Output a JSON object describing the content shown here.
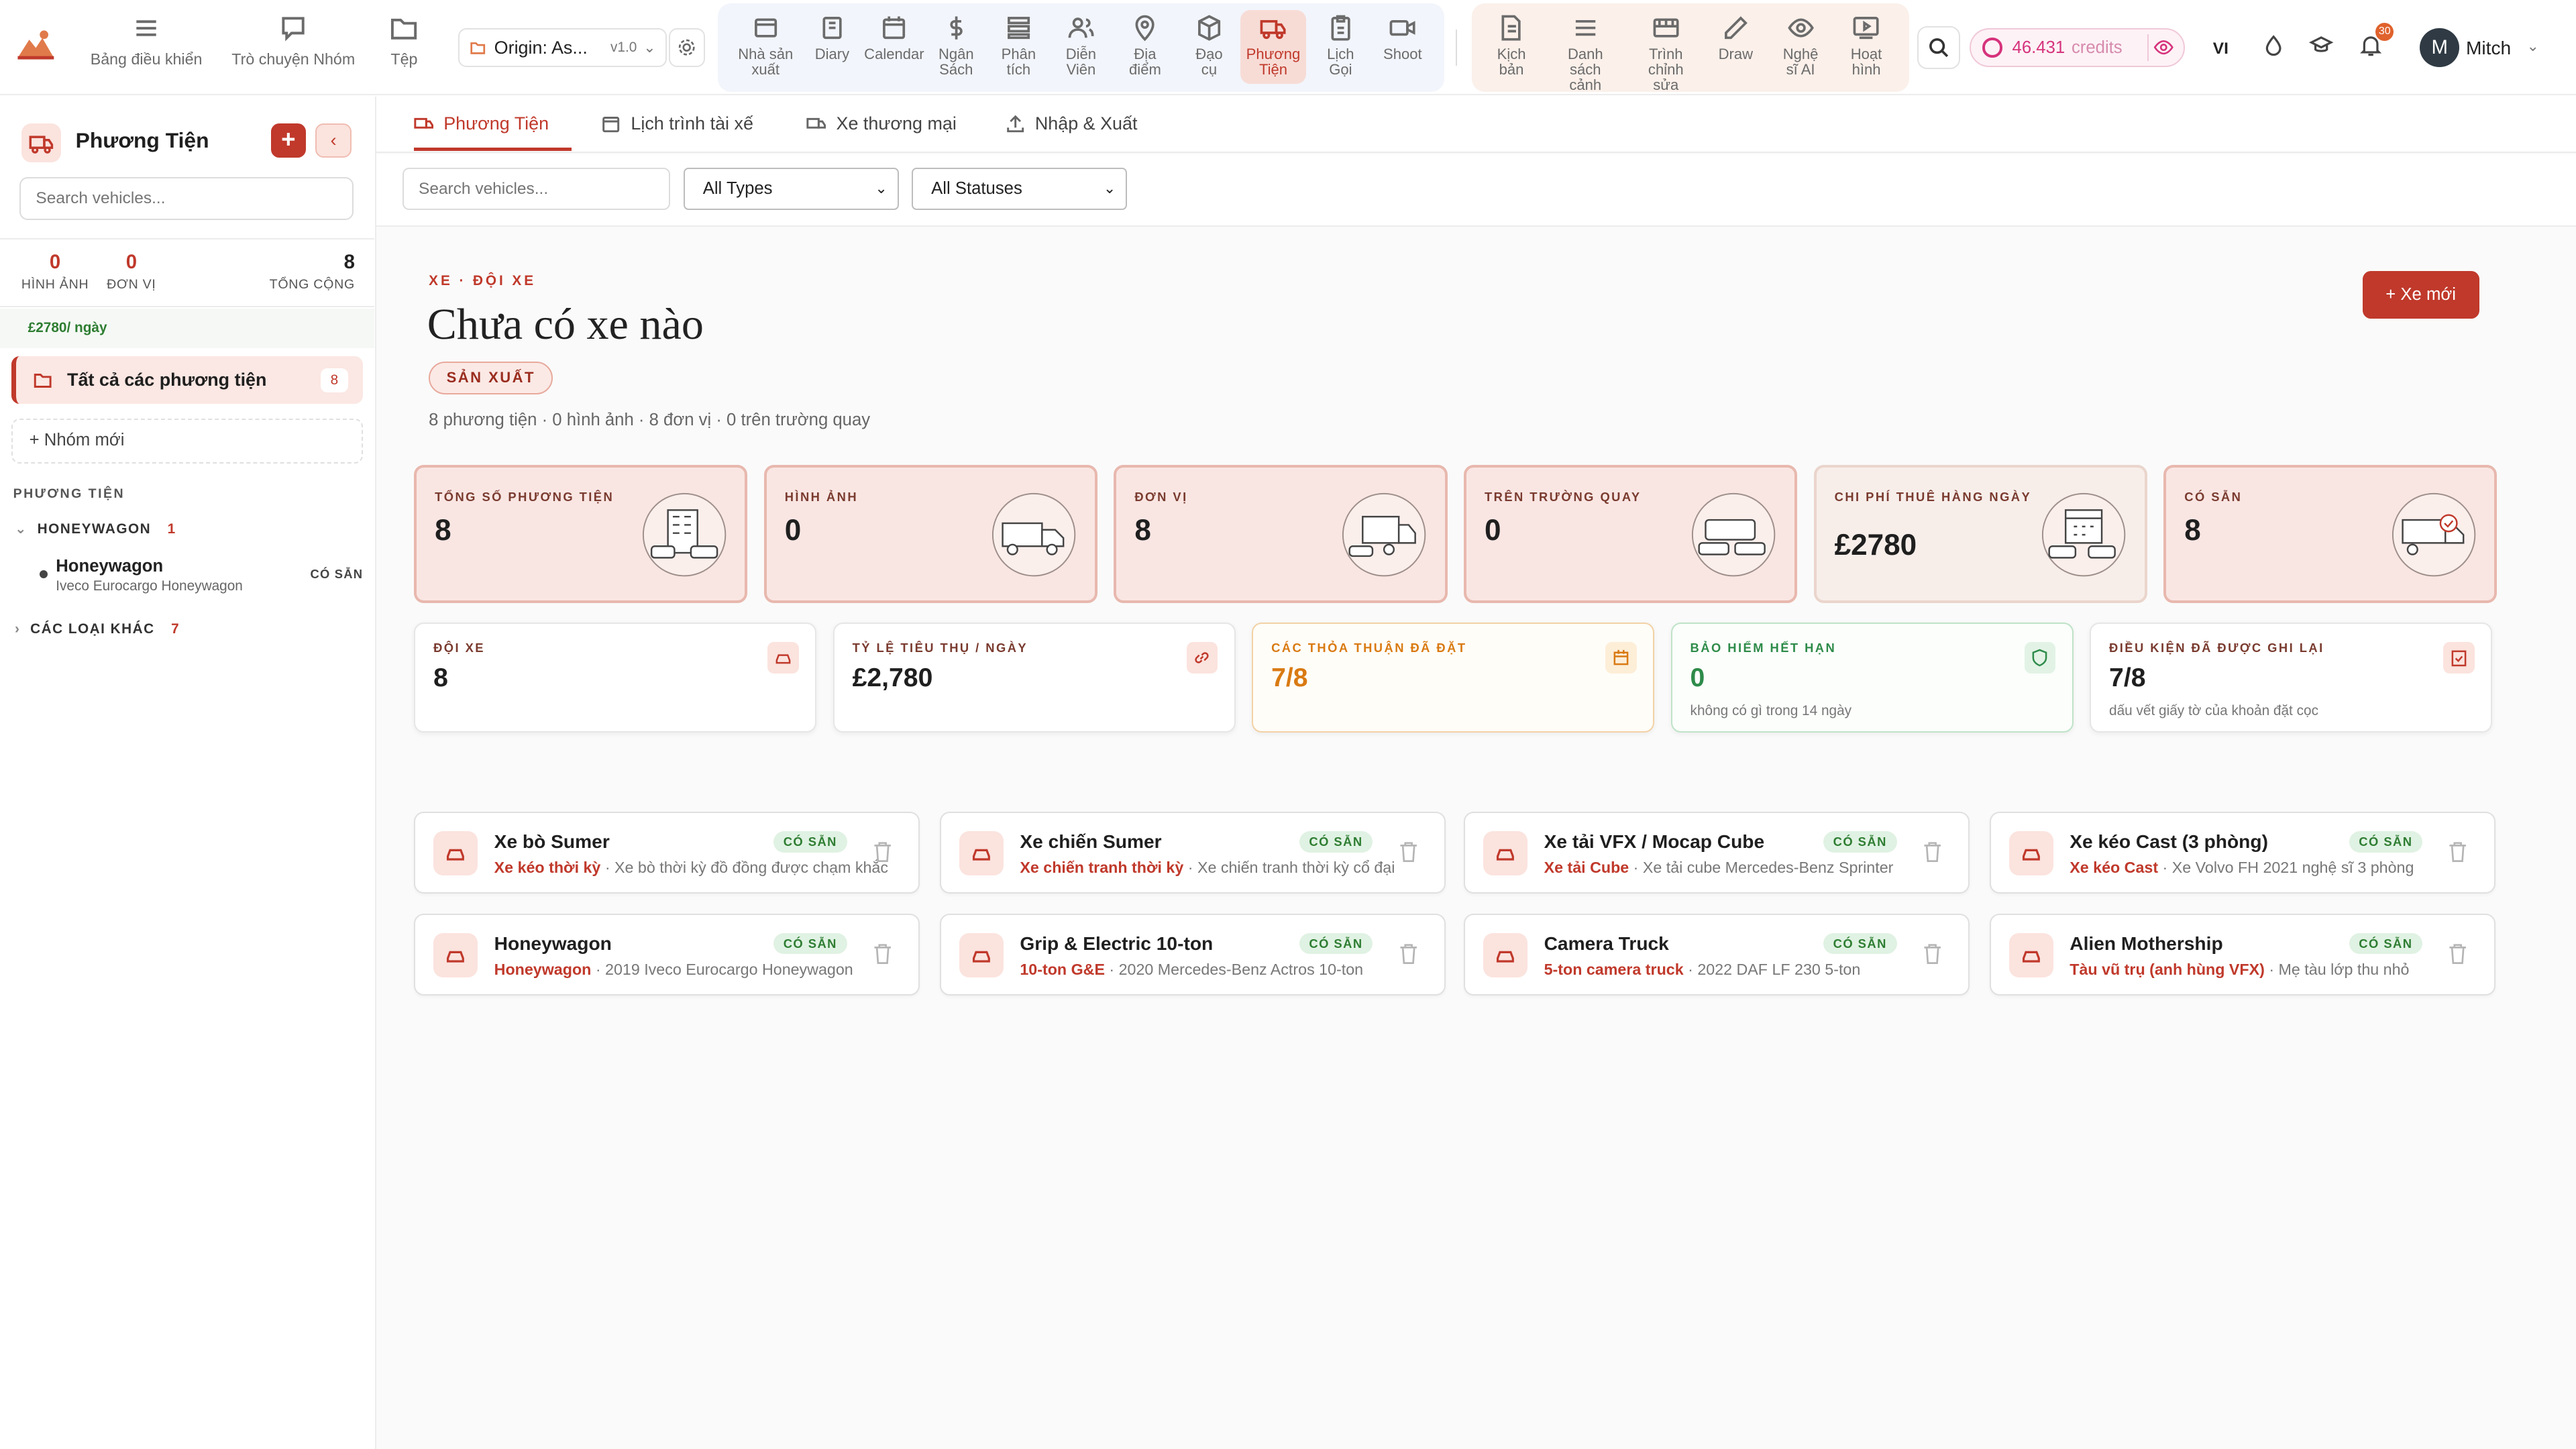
{
  "header": {
    "nav": [
      {
        "label": "Bảng điều khiển",
        "icon": "dashboard-icon"
      },
      {
        "label": "Trò chuyện Nhóm",
        "icon": "chat-icon"
      },
      {
        "label": "Tệp",
        "icon": "folder-icon"
      }
    ],
    "project": {
      "name": "Origin: As...",
      "version": "v1.0"
    },
    "modules": [
      {
        "label": "Nhà sản xuất",
        "icon": "producer-icon"
      },
      {
        "label": "Diary",
        "icon": "diary-icon"
      },
      {
        "label": "Calendar",
        "icon": "calendar-icon"
      },
      {
        "label": "Ngân Sách",
        "icon": "dollar-icon"
      },
      {
        "label": "Phân tích",
        "icon": "breakdown-icon"
      },
      {
        "label": "Diễn Viên",
        "icon": "cast-icon"
      },
      {
        "label": "Địa điểm",
        "icon": "location-icon"
      },
      {
        "label": "Đạo cụ",
        "icon": "props-icon"
      },
      {
        "label": "Phương Tiện",
        "icon": "truck-icon",
        "active": true
      },
      {
        "label": "Lịch Gọi",
        "icon": "callsheet-icon"
      },
      {
        "label": "Shoot",
        "icon": "camera-icon"
      }
    ],
    "tools": [
      {
        "label": "Kịch bản",
        "icon": "script-icon"
      },
      {
        "label": "Danh sách cảnh",
        "icon": "list-icon"
      },
      {
        "label": "Trình chỉnh sửa",
        "icon": "editor-icon"
      },
      {
        "label": "Draw",
        "icon": "pencil-icon"
      },
      {
        "label": "Nghệ sĩ AI",
        "icon": "eye-icon"
      },
      {
        "label": "Hoạt hình",
        "icon": "animation-icon"
      }
    ],
    "credits": {
      "value": "46.431",
      "unit": "credits"
    },
    "language": "VI",
    "notifications": "30",
    "user": {
      "initial": "M",
      "name": "Mitch"
    }
  },
  "sidebar": {
    "title": "Phương Tiện",
    "add_label": "+",
    "collapse_label": "‹",
    "search_placeholder": "Search vehicles...",
    "stats": [
      {
        "value": "0",
        "label": "HÌNH ẢNH"
      },
      {
        "value": "0",
        "label": "ĐƠN VỊ"
      },
      {
        "value": "8",
        "label": "TỔNG CỘNG"
      }
    ],
    "rate": "£2780/ ngày",
    "all_label": "Tất cả các phương tiện",
    "all_count": "8",
    "new_group": "+  Nhóm mới",
    "section": "PHƯƠNG TIỆN",
    "groups": [
      {
        "name": "HONEYWAGON",
        "count": "1",
        "caret": "⌄"
      },
      {
        "name": "CÁC LOẠI KHÁC",
        "count": "7",
        "caret": "›"
      }
    ],
    "vehicle": {
      "name": "Honeywagon",
      "model": "Iveco Eurocargo Honeywagon",
      "status": "CÓ SẴN"
    }
  },
  "main": {
    "tabs": [
      {
        "label": "Phương Tiện",
        "active": true
      },
      {
        "label": "Lịch trình tài xế"
      },
      {
        "label": "Xe thương mại"
      },
      {
        "label": "Nhập & Xuất"
      }
    ],
    "filters": {
      "search_placeholder": "Search vehicles...",
      "type": "All Types",
      "status": "All Statuses"
    },
    "eyebrow": "XE · ĐỘI XE",
    "title": "Chưa có xe nào",
    "phase": "SẢN XUẤT",
    "summary": "8 phương tiện · 0 hình ảnh · 8 đơn vị · 0 trên trường quay",
    "new_button": "+ Xe mới",
    "stat_cards": [
      {
        "label": "TỔNG SỐ PHƯƠNG TIỆN",
        "value": "8"
      },
      {
        "label": "HÌNH ẢNH",
        "value": "0"
      },
      {
        "label": "ĐƠN VỊ",
        "value": "8"
      },
      {
        "label": "TRÊN TRƯỜNG QUAY",
        "value": "0"
      },
      {
        "label": "CHI PHÍ THUÊ HÀNG NGÀY",
        "value": "£2780"
      },
      {
        "label": "CÓ SẴN",
        "value": "8"
      }
    ],
    "kpis": [
      {
        "label": "ĐỘI XE",
        "value": "8",
        "sub": ""
      },
      {
        "label": "TỶ LỆ TIÊU THỤ / NGÀY",
        "value": "£2,780",
        "sub": ""
      },
      {
        "label": "CÁC THỎA THUẬN ĐÃ ĐẶT",
        "value": "7/8",
        "sub": ""
      },
      {
        "label": "BẢO HIỂM HẾT HẠN",
        "value": "0",
        "sub": "không có gì trong 14 ngày"
      },
      {
        "label": "ĐIỀU KIỆN ĐÃ ĐƯỢC GHI LẠI",
        "value": "7/8",
        "sub": "dấu vết giấy tờ của khoản đặt cọc"
      }
    ],
    "vehicles": [
      {
        "name": "Xe bò Sumer",
        "status": "CÓ SẴN",
        "type": "Xe kéo thời kỳ",
        "desc": "Xe bò thời kỳ đồ đồng được chạm khắc"
      },
      {
        "name": "Xe chiến Sumer",
        "status": "CÓ SẴN",
        "type": "Xe chiến tranh thời kỳ",
        "desc": "Xe chiến tranh thời kỳ cổ đại"
      },
      {
        "name": "Xe tải VFX / Mocap Cube",
        "status": "CÓ SẴN",
        "type": "Xe tải Cube",
        "desc": "Xe tải cube Mercedes-Benz Sprinter"
      },
      {
        "name": "Xe kéo Cast (3 phòng)",
        "status": "CÓ SẴN",
        "type": "Xe kéo Cast",
        "desc": "Xe Volvo FH 2021 nghệ sĩ 3 phòng"
      },
      {
        "name": "Honeywagon",
        "status": "CÓ SẴN",
        "type": "Honeywagon",
        "desc": "2019 Iveco Eurocargo Honeywagon"
      },
      {
        "name": "Grip & Electric 10-ton",
        "status": "CÓ SẴN",
        "type": "10-ton G&E",
        "desc": "2020 Mercedes-Benz Actros 10-ton"
      },
      {
        "name": "Camera Truck",
        "status": "CÓ SẴN",
        "type": "5-ton camera truck",
        "desc": "2022 DAF LF 230 5-ton"
      },
      {
        "name": "Alien Mothership",
        "status": "CÓ SẴN",
        "type": "Tàu vũ trụ (anh hùng VFX)",
        "desc": "Mẹ tàu lớp thu nhỏ"
      }
    ]
  },
  "colors": {
    "accent": "#c0392b",
    "available": "#2e7d32",
    "credits": "#d6337c",
    "warning": "#d97a12"
  }
}
